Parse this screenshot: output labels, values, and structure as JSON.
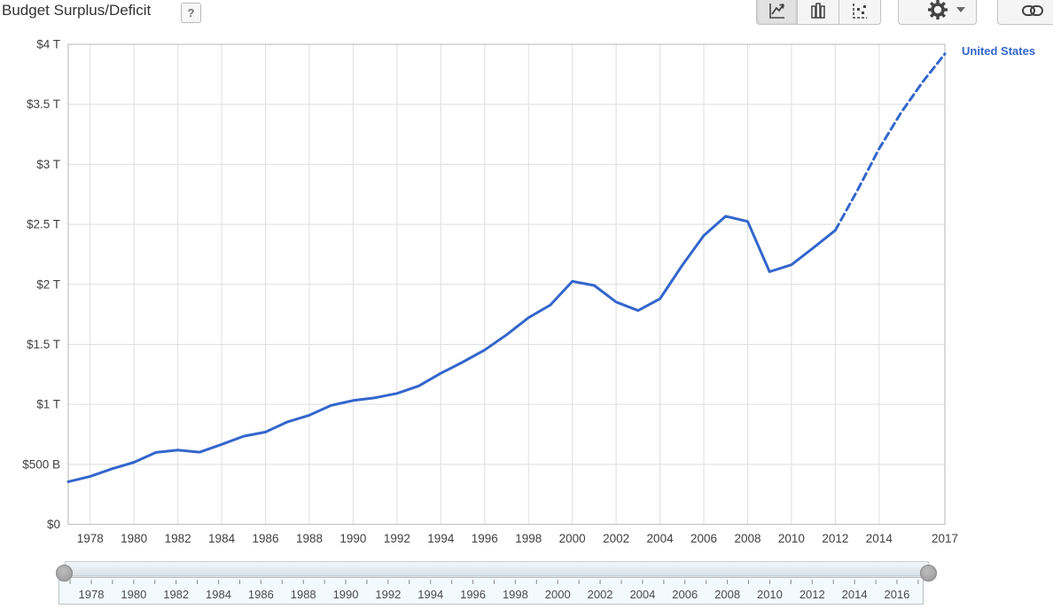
{
  "header": {
    "title": "Budget Surplus/Deficit",
    "help_label": "?"
  },
  "toolbar": {
    "chart_type_buttons": [
      {
        "label": "line chart",
        "icon": "line-chart-icon",
        "selected": true
      },
      {
        "label": "bar chart",
        "icon": "bar-chart-icon",
        "selected": false
      },
      {
        "label": "scatter chart",
        "icon": "scatter-chart-icon",
        "selected": false
      }
    ],
    "settings_button": {
      "icon": "gear-icon",
      "caret": "down"
    },
    "link_button": {
      "icon": "link-icon"
    }
  },
  "chart_data": {
    "type": "line",
    "title": "Budget Surplus/Deficit",
    "unit": "USD billions",
    "grid": true,
    "legend_position": "top-right",
    "legend": [
      {
        "name": "United States",
        "color": "#3366cc"
      }
    ],
    "xlim": [
      1977,
      2017
    ],
    "ylim": [
      0,
      4000
    ],
    "x": [
      1977,
      1978,
      1979,
      1980,
      1981,
      1982,
      1983,
      1984,
      1985,
      1986,
      1987,
      1988,
      1989,
      1990,
      1991,
      1992,
      1993,
      1994,
      1995,
      1996,
      1997,
      1998,
      1999,
      2000,
      2001,
      2002,
      2003,
      2004,
      2005,
      2006,
      2007,
      2008,
      2009,
      2010,
      2011,
      2012,
      2013,
      2014,
      2015,
      2016,
      2017
    ],
    "series": [
      {
        "name": "United States",
        "color": "#3366cc",
        "values": [
          355,
          400,
          463,
          517,
          599,
          618,
          601,
          666,
          734,
          769,
          854,
          909,
          991,
          1032,
          1055,
          1091,
          1154,
          1259,
          1352,
          1453,
          1579,
          1722,
          1828,
          2025,
          1991,
          1853,
          1782,
          1880,
          2154,
          2407,
          2568,
          2524,
          2105,
          2163,
          2304,
          2450,
          2780,
          3130,
          3430,
          3690,
          3920
        ],
        "solid_until_year": 2012,
        "dashed_from_year": 2012,
        "projection_years": [
          2013,
          2014,
          2015,
          2016,
          2017
        ]
      }
    ],
    "y_ticks": [
      {
        "label": "$4 T",
        "value": 4000
      },
      {
        "label": "$3.5 T",
        "value": 3500
      },
      {
        "label": "$3 T",
        "value": 3000
      },
      {
        "label": "$2.5 T",
        "value": 2500
      },
      {
        "label": "$2 T",
        "value": 2000
      },
      {
        "label": "$1.5 T",
        "value": 1500
      },
      {
        "label": "$1 T",
        "value": 1000
      },
      {
        "label": "$500 B",
        "value": 500
      },
      {
        "label": "$0",
        "value": 0
      }
    ],
    "x_ticks": [
      {
        "label": "1978",
        "year": 1978
      },
      {
        "label": "1980",
        "year": 1980
      },
      {
        "label": "1982",
        "year": 1982
      },
      {
        "label": "1984",
        "year": 1984
      },
      {
        "label": "1986",
        "year": 1986
      },
      {
        "label": "1988",
        "year": 1988
      },
      {
        "label": "1990",
        "year": 1990
      },
      {
        "label": "1992",
        "year": 1992
      },
      {
        "label": "1994",
        "year": 1994
      },
      {
        "label": "1996",
        "year": 1996
      },
      {
        "label": "1998",
        "year": 1998
      },
      {
        "label": "2000",
        "year": 2000
      },
      {
        "label": "2002",
        "year": 2002
      },
      {
        "label": "2004",
        "year": 2004
      },
      {
        "label": "2006",
        "year": 2006
      },
      {
        "label": "2008",
        "year": 2008
      },
      {
        "label": "2010",
        "year": 2010
      },
      {
        "label": "2012",
        "year": 2012
      },
      {
        "label": "2014",
        "year": 2014
      },
      {
        "label": "2017",
        "year": 2017
      }
    ],
    "colors": {
      "line": "#3366cc",
      "grid": "#dedede",
      "border": "#c2c2c2",
      "tick_text": "#404040"
    }
  },
  "slider": {
    "range_years": [
      1977,
      2017
    ],
    "labels": [
      "1978",
      "1980",
      "1982",
      "1984",
      "1986",
      "1988",
      "1990",
      "1992",
      "1994",
      "1996",
      "1998",
      "2000",
      "2002",
      "2004",
      "2006",
      "2008",
      "2010",
      "2012",
      "2014",
      "2016"
    ],
    "handles": [
      "left",
      "right"
    ]
  }
}
